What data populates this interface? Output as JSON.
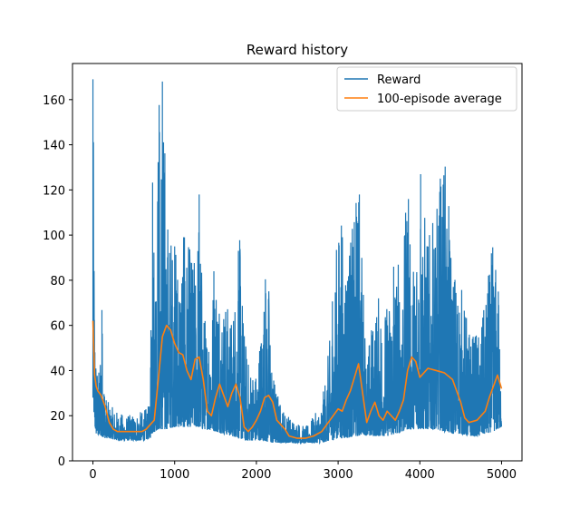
{
  "chart_data": {
    "type": "line",
    "title": "Reward history",
    "xlabel": "",
    "ylabel": "",
    "xlim": [
      -250,
      5250
    ],
    "ylim": [
      0,
      176
    ],
    "xticks": [
      0,
      1000,
      2000,
      3000,
      4000,
      5000
    ],
    "yticks": [
      0,
      20,
      40,
      60,
      80,
      100,
      120,
      140,
      160
    ],
    "grid": false,
    "legend_position": "top-right",
    "series": [
      {
        "name": "Reward",
        "color": "#1f77b4",
        "style": "noisy-band",
        "x": [
          0,
          20,
          40,
          80,
          100,
          150,
          200,
          300,
          400,
          500,
          600,
          700,
          720,
          760,
          800,
          850,
          900,
          1000,
          1100,
          1200,
          1250,
          1300,
          1350,
          1400,
          1500,
          1600,
          1700,
          1800,
          1850,
          1900,
          2000,
          2100,
          2150,
          2200,
          2300,
          2400,
          2600,
          2800,
          2900,
          3000,
          3100,
          3200,
          3250,
          3300,
          3350,
          3400,
          3500,
          3600,
          3700,
          3800,
          3850,
          3900,
          4000,
          4100,
          4200,
          4300,
          4400,
          4500,
          4600,
          4700,
          4800,
          4900,
          4950,
          5000
        ],
        "low": [
          28,
          15,
          12,
          11,
          11,
          10,
          10,
          9,
          9,
          9,
          9,
          10,
          12,
          13,
          14,
          14,
          14,
          15,
          15,
          15,
          15,
          15,
          14,
          14,
          13,
          12,
          11,
          10,
          9,
          9,
          9,
          9,
          8,
          8,
          8,
          8,
          8,
          8,
          9,
          10,
          10,
          11,
          11,
          12,
          11,
          11,
          11,
          11,
          12,
          13,
          14,
          14,
          14,
          14,
          14,
          13,
          12,
          12,
          11,
          11,
          12,
          13,
          14,
          15
        ],
        "high": [
          169,
          80,
          45,
          40,
          76,
          30,
          25,
          22,
          20,
          21,
          22,
          25,
          131,
          100,
          155,
          168,
          115,
          95,
          100,
          95,
          90,
          118,
          70,
          60,
          90,
          75,
          65,
          100,
          60,
          45,
          40,
          80,
          82,
          40,
          25,
          20,
          15,
          25,
          55,
          107,
          100,
          107,
          125,
          90,
          45,
          60,
          75,
          70,
          90,
          95,
          125,
          80,
          130,
          100,
          110,
          140,
          90,
          80,
          60,
          55,
          70,
          100,
          80,
          55
        ],
        "spike_x": [
          0,
          110,
          730,
          810,
          850,
          880,
          1000,
          1120,
          1300,
          1480,
          1780,
          2110,
          2930,
          3040,
          3220,
          3260,
          3680,
          3860,
          4010,
          4250,
          4690,
          4840,
          4960
        ]
      },
      {
        "name": "100-episode average",
        "color": "#ff7f0e",
        "x": [
          0,
          20,
          40,
          60,
          100,
          150,
          200,
          250,
          300,
          400,
          500,
          600,
          650,
          700,
          750,
          800,
          850,
          900,
          950,
          1000,
          1050,
          1100,
          1150,
          1200,
          1250,
          1300,
          1350,
          1400,
          1450,
          1500,
          1550,
          1600,
          1650,
          1700,
          1750,
          1800,
          1850,
          1900,
          1950,
          2000,
          2050,
          2100,
          2150,
          2200,
          2250,
          2300,
          2350,
          2400,
          2500,
          2600,
          2700,
          2800,
          2900,
          3000,
          3050,
          3100,
          3150,
          3200,
          3250,
          3300,
          3350,
          3400,
          3450,
          3500,
          3550,
          3600,
          3650,
          3700,
          3750,
          3800,
          3850,
          3900,
          3950,
          4000,
          4100,
          4200,
          4300,
          4400,
          4500,
          4550,
          4600,
          4700,
          4800,
          4850,
          4900,
          4950,
          5000
        ],
        "y": [
          62,
          38,
          33,
          31,
          29,
          24,
          17,
          14,
          13,
          13,
          13,
          13,
          14,
          16,
          18,
          36,
          55,
          60,
          58,
          52,
          48,
          47,
          40,
          36,
          45,
          46,
          36,
          22,
          20,
          28,
          34,
          29,
          24,
          30,
          34,
          28,
          15,
          13,
          15,
          18,
          22,
          28,
          29,
          26,
          18,
          16,
          14,
          11,
          10,
          10,
          11,
          13,
          18,
          23,
          22,
          27,
          31,
          37,
          43,
          30,
          17,
          22,
          26,
          20,
          18,
          22,
          20,
          18,
          22,
          27,
          40,
          46,
          44,
          37,
          41,
          40,
          39,
          36,
          26,
          19,
          17,
          18,
          22,
          28,
          33,
          38,
          32
        ]
      }
    ]
  }
}
